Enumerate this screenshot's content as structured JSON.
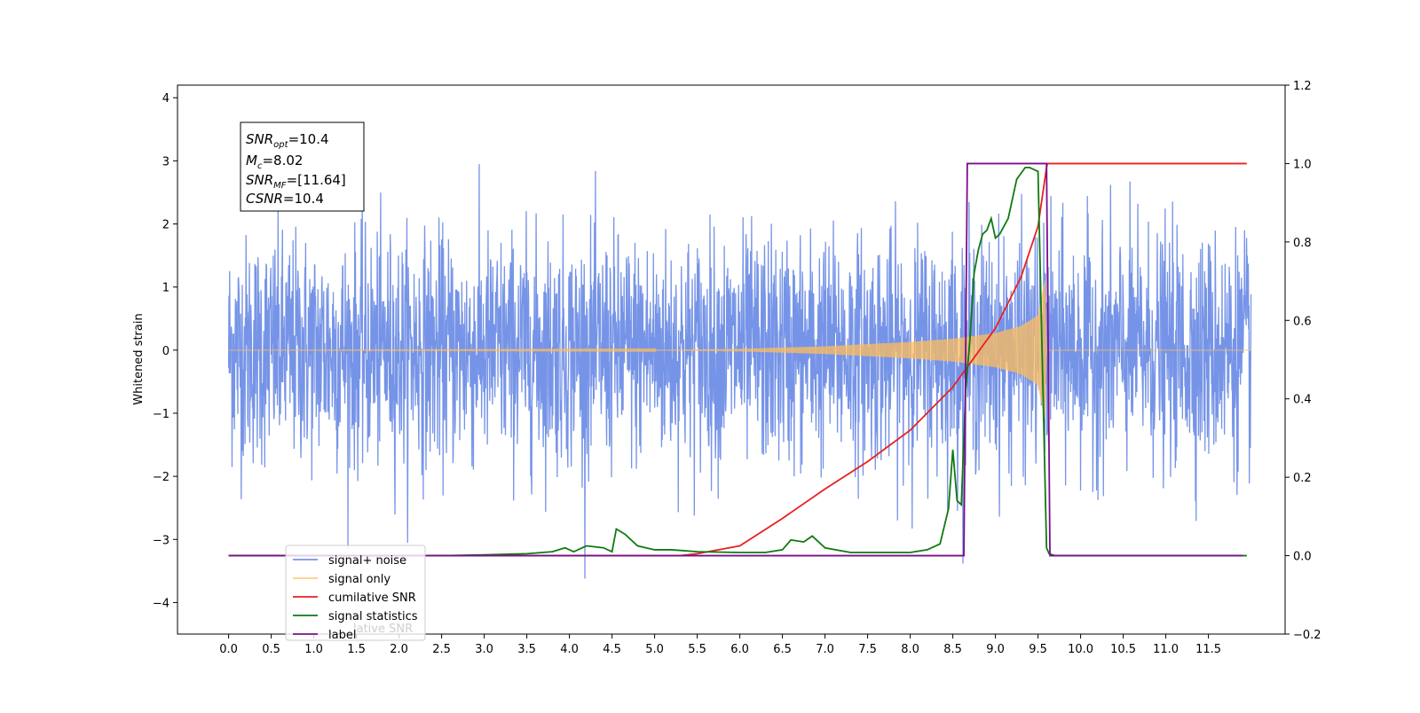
{
  "chart_data": {
    "type": "line",
    "ylabel": "Whitened strain",
    "xlabel": "",
    "xlim": [
      -0.6,
      12.4
    ],
    "ylim": [
      -4.5,
      4.2
    ],
    "ylim_right": [
      -0.2,
      1.2
    ],
    "x_ticks": [
      0.0,
      0.5,
      1.0,
      1.5,
      2.0,
      2.5,
      3.0,
      3.5,
      4.0,
      4.5,
      5.0,
      5.5,
      6.0,
      6.5,
      7.0,
      7.5,
      8.0,
      8.5,
      9.0,
      9.5,
      10.0,
      10.5,
      11.0,
      11.5
    ],
    "x_tick_labels": [
      "0.0",
      "0.5",
      "1.0",
      "1.5",
      "2.0",
      "2.5",
      "3.0",
      "3.5",
      "4.0",
      "4.5",
      "5.0",
      "5.5",
      "6.0",
      "6.5",
      "7.0",
      "7.5",
      "8.0",
      "8.5",
      "9.0",
      "9.5",
      "10.0",
      "10.5",
      "11.0",
      "11.5"
    ],
    "y_ticks_left": [
      -4,
      -3,
      -2,
      -1,
      0,
      1,
      2,
      3,
      4
    ],
    "y_tick_labels_left": [
      "−4",
      "−3",
      "−2",
      "−1",
      "0",
      "1",
      "2",
      "3",
      "4"
    ],
    "y_ticks_right": [
      -0.2,
      0.0,
      0.2,
      0.4,
      0.6,
      0.8,
      1.0,
      1.2
    ],
    "y_tick_labels_right": [
      "−0.2",
      "0.0",
      "0.2",
      "0.4",
      "0.6",
      "0.8",
      "1.0",
      "1.2"
    ],
    "grid": false,
    "legend_position": "lower-left",
    "annotation": {
      "lines": [
        {
          "sym": "SNR",
          "sub": "opt",
          "val": "=10.4"
        },
        {
          "sym": "M",
          "sub": "c",
          "val": "=8.02"
        },
        {
          "sym": "SNR",
          "sub": "MF",
          "val": "=[11.64]"
        },
        {
          "sym": "CSNR",
          "sub": "",
          "val": "=10.4"
        }
      ]
    },
    "series": [
      {
        "name": "signal+ noise",
        "axis": "left",
        "color": "#6f8ee6",
        "noise_sigma": 0.9,
        "noise_x_range": [
          0.0,
          12.0
        ],
        "noise_samples": 3000
      },
      {
        "name": "signal only",
        "axis": "left",
        "color": "#ffbe5c",
        "chirp_amplitude_envelope": {
          "x": [
            0.0,
            5.0,
            6.0,
            7.0,
            8.0,
            8.5,
            9.0,
            9.3,
            9.5,
            9.58,
            9.6,
            12.0
          ],
          "y": [
            0.0,
            0.005,
            0.02,
            0.06,
            0.13,
            0.18,
            0.27,
            0.38,
            0.55,
            1.1,
            0.0,
            0.0
          ]
        }
      },
      {
        "name": "cumilative SNR",
        "axis": "right",
        "color": "#e8211f",
        "x": [
          0.0,
          5.3,
          5.5,
          6.0,
          6.5,
          7.0,
          7.5,
          8.0,
          8.5,
          9.0,
          9.3,
          9.5,
          9.6,
          9.61,
          11.95
        ],
        "y": [
          0.0,
          0.0,
          0.005,
          0.025,
          0.095,
          0.17,
          0.24,
          0.32,
          0.43,
          0.58,
          0.71,
          0.84,
          0.99,
          1.0,
          1.0
        ]
      },
      {
        "name": "signal statistics",
        "axis": "right",
        "color": "#107a10",
        "x": [
          0.0,
          2.5,
          3.0,
          3.5,
          3.8,
          3.95,
          4.05,
          4.2,
          4.4,
          4.5,
          4.55,
          4.65,
          4.8,
          5.0,
          5.2,
          5.5,
          6.0,
          6.3,
          6.5,
          6.6,
          6.75,
          6.85,
          7.0,
          7.3,
          7.6,
          8.0,
          8.2,
          8.35,
          8.45,
          8.5,
          8.55,
          8.6,
          8.65,
          8.7,
          8.75,
          8.8,
          8.85,
          8.9,
          8.95,
          9.0,
          9.05,
          9.15,
          9.25,
          9.35,
          9.4,
          9.5,
          9.55,
          9.6,
          9.63,
          9.7,
          10.0,
          10.3,
          11.95
        ],
        "y": [
          0.0,
          0.0,
          0.002,
          0.005,
          0.01,
          0.02,
          0.01,
          0.025,
          0.02,
          0.01,
          0.068,
          0.055,
          0.025,
          0.015,
          0.015,
          0.01,
          0.008,
          0.008,
          0.015,
          0.04,
          0.035,
          0.05,
          0.02,
          0.008,
          0.008,
          0.008,
          0.015,
          0.03,
          0.12,
          0.27,
          0.14,
          0.13,
          0.42,
          0.55,
          0.72,
          0.78,
          0.82,
          0.83,
          0.86,
          0.81,
          0.82,
          0.86,
          0.96,
          0.99,
          0.99,
          0.98,
          0.5,
          0.02,
          0.005,
          0.0,
          0.0,
          0.0,
          0.0
        ]
      },
      {
        "name": "label",
        "axis": "right",
        "color": "#7a0f8a",
        "x": [
          0.0,
          8.63,
          8.67,
          9.6,
          9.64,
          11.9
        ],
        "y": [
          0.0,
          0.0,
          1.0,
          1.0,
          0.0,
          0.0
        ]
      }
    ],
    "legend_overlap_text": "lative SNR"
  }
}
